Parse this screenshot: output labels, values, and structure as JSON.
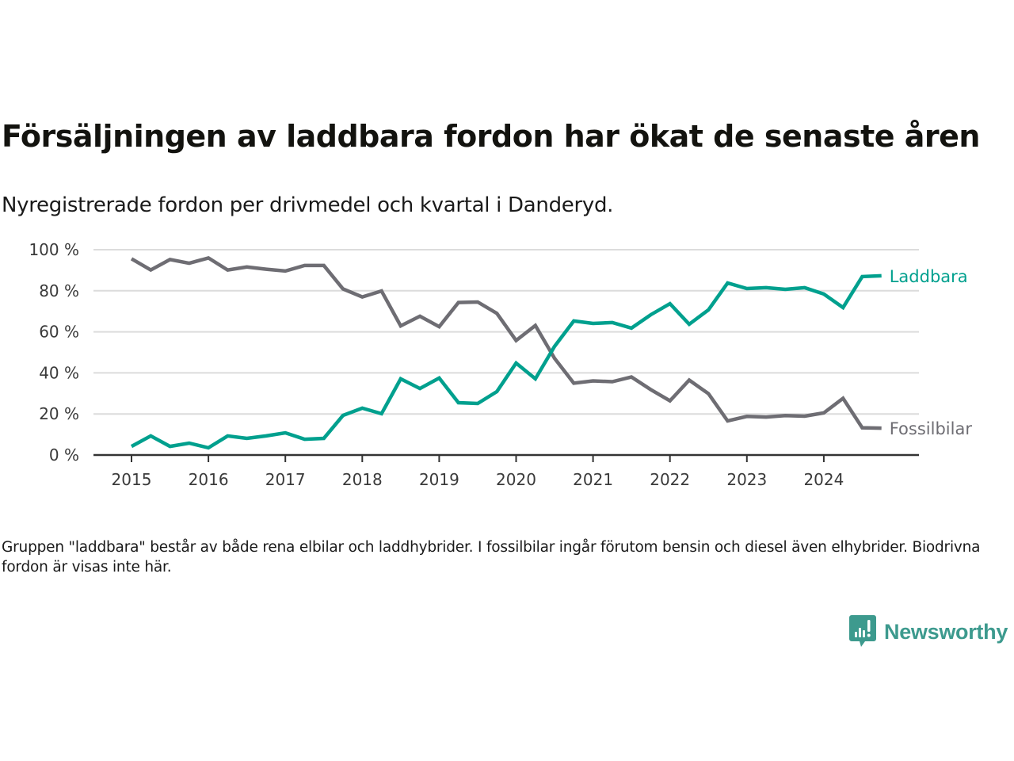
{
  "header": {
    "title": "Försäljningen av laddbara fordon har ökat de senaste åren",
    "subtitle": "Nyregistrerade fordon per drivmedel och kvartal i Danderyd."
  },
  "footnote": "Gruppen \"laddbara\" består av både rena elbilar och laddhybrider. I fossilbilar ingår förutom bensin och diesel även elhybrider. Biodrivna fordon är visas inte här.",
  "brand": {
    "name": "Newsworthy",
    "icon": "chart-speech-bubble-icon",
    "color": "#3d9a8e"
  },
  "chart_data": {
    "type": "line",
    "title": "Försäljningen av laddbara fordon har ökat de senaste åren",
    "subtitle": "Nyregistrerade fordon per drivmedel och kvartal i Danderyd.",
    "xlabel": "",
    "ylabel": "",
    "x_unit": "quarter",
    "x_start": "2015-Q1",
    "x_ticks": [
      "2015",
      "2016",
      "2017",
      "2018",
      "2019",
      "2020",
      "2021",
      "2022",
      "2023",
      "2024"
    ],
    "y_ticks": [
      0,
      20,
      40,
      60,
      80,
      100
    ],
    "y_tick_suffix": " %",
    "ylim": [
      0,
      100
    ],
    "grid": true,
    "legend": "direct-labels-right",
    "series": [
      {
        "name": "Laddbara",
        "color": "#00a08e",
        "values": [
          4.2,
          9.3,
          4.2,
          5.8,
          3.5,
          9.3,
          8.1,
          9.3,
          10.8,
          7.7,
          8.1,
          19.3,
          22.8,
          20.1,
          37.1,
          32.4,
          37.5,
          25.5,
          25.1,
          30.9,
          44.8,
          37.1,
          52.9,
          65.3,
          64.1,
          64.5,
          61.8,
          68.3,
          73.7,
          63.7,
          70.7,
          83.8,
          81.1,
          81.5,
          80.7,
          81.5,
          78.4,
          71.8,
          86.9,
          87.3
        ]
      },
      {
        "name": "Fossilbilar",
        "color": "#6e6d73",
        "values": [
          95.6,
          90.1,
          95.2,
          93.4,
          96.0,
          90.1,
          91.6,
          90.5,
          89.6,
          92.3,
          92.3,
          80.9,
          77.0,
          79.9,
          62.9,
          67.6,
          62.5,
          74.3,
          74.5,
          69.0,
          55.8,
          63.1,
          47.1,
          35.0,
          36.1,
          35.7,
          38.0,
          31.9,
          26.4,
          36.5,
          29.9,
          16.6,
          18.8,
          18.5,
          19.2,
          18.9,
          20.5,
          27.6,
          13.3,
          13.1
        ]
      }
    ]
  }
}
